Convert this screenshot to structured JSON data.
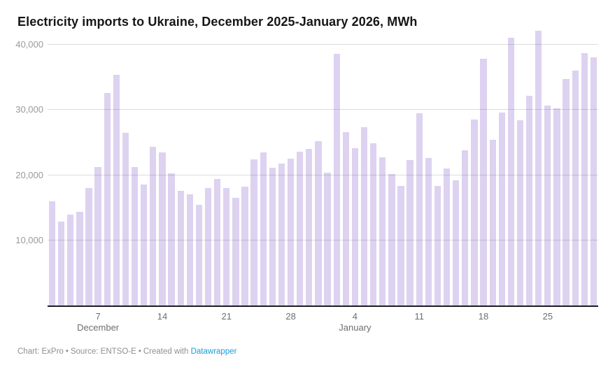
{
  "title": "Electricity imports to Ukraine, December 2025-January 2026, MWh",
  "footer": {
    "chart_credit": "Chart: ExPro",
    "separator": "•",
    "source": "Source: ENTSO-E",
    "created_with": "Created with",
    "link_label": "Datawrapper",
    "link_color": "#1d9bd9"
  },
  "colors": {
    "bar": "#ddd2f0",
    "gridline": "rgba(80,80,80,0.20)",
    "baseline": "#1c1c1c",
    "y_axis_label": "#9a9a9a",
    "x_axis_label": "#6e6e6e",
    "title_text": "#161616",
    "footer_text": "#8f8f8f",
    "background": "#ffffff"
  },
  "chart_data": {
    "type": "bar",
    "title": "Electricity imports to Ukraine, December 2025-January 2026, MWh",
    "unit": "MWh",
    "xlabel": "",
    "ylabel": "",
    "ylim": [
      0,
      42500
    ],
    "grid": "horizontal",
    "legend": "none",
    "yticks": [
      10000,
      20000,
      30000,
      40000
    ],
    "ytick_labels": [
      "10,000",
      "20,000",
      "30,000",
      "40,000"
    ],
    "x_ticks": [
      {
        "index": 5,
        "label": "7"
      },
      {
        "index": 12,
        "label": "14"
      },
      {
        "index": 19,
        "label": "21"
      },
      {
        "index": 26,
        "label": "28"
      },
      {
        "index": 33,
        "label": "4"
      },
      {
        "index": 40,
        "label": "11"
      },
      {
        "index": 47,
        "label": "18"
      },
      {
        "index": 54,
        "label": "25"
      }
    ],
    "month_labels": [
      {
        "index": 5,
        "label": "December"
      },
      {
        "index": 33,
        "label": "January"
      }
    ],
    "categories": [
      "Dec 2",
      "Dec 3",
      "Dec 4",
      "Dec 5",
      "Dec 6",
      "Dec 7",
      "Dec 8",
      "Dec 9",
      "Dec 10",
      "Dec 11",
      "Dec 12",
      "Dec 13",
      "Dec 14",
      "Dec 15",
      "Dec 16",
      "Dec 17",
      "Dec 18",
      "Dec 19",
      "Dec 20",
      "Dec 21",
      "Dec 22",
      "Dec 23",
      "Dec 24",
      "Dec 25",
      "Dec 26",
      "Dec 27",
      "Dec 28",
      "Dec 29",
      "Dec 30",
      "Dec 31",
      "Jan 1",
      "Jan 2",
      "Jan 3",
      "Jan 4",
      "Jan 5",
      "Jan 6",
      "Jan 7",
      "Jan 8",
      "Jan 9",
      "Jan 10",
      "Jan 11",
      "Jan 12",
      "Jan 13",
      "Jan 14",
      "Jan 15",
      "Jan 16",
      "Jan 17",
      "Jan 18",
      "Jan 19",
      "Jan 20",
      "Jan 21",
      "Jan 22",
      "Jan 23",
      "Jan 24",
      "Jan 25",
      "Jan 26",
      "Jan 27",
      "Jan 28",
      "Jan 29",
      "Jan 30"
    ],
    "values": [
      16000,
      12900,
      14000,
      14400,
      18000,
      21250,
      32600,
      35400,
      26450,
      21250,
      18550,
      24400,
      23500,
      20300,
      17650,
      17100,
      15500,
      18050,
      19400,
      18000,
      16500,
      18250,
      22450,
      23450,
      21200,
      21800,
      22550,
      23600,
      24050,
      25200,
      20350,
      38600,
      26650,
      24100,
      27350,
      24850,
      22750,
      20150,
      18350,
      22300,
      29500,
      22600,
      18350,
      21000,
      19200,
      23800,
      28500,
      37800,
      25400,
      29650,
      41100,
      28400,
      32200,
      42150,
      30650,
      30300,
      34750,
      36000,
      38750,
      38050
    ]
  }
}
